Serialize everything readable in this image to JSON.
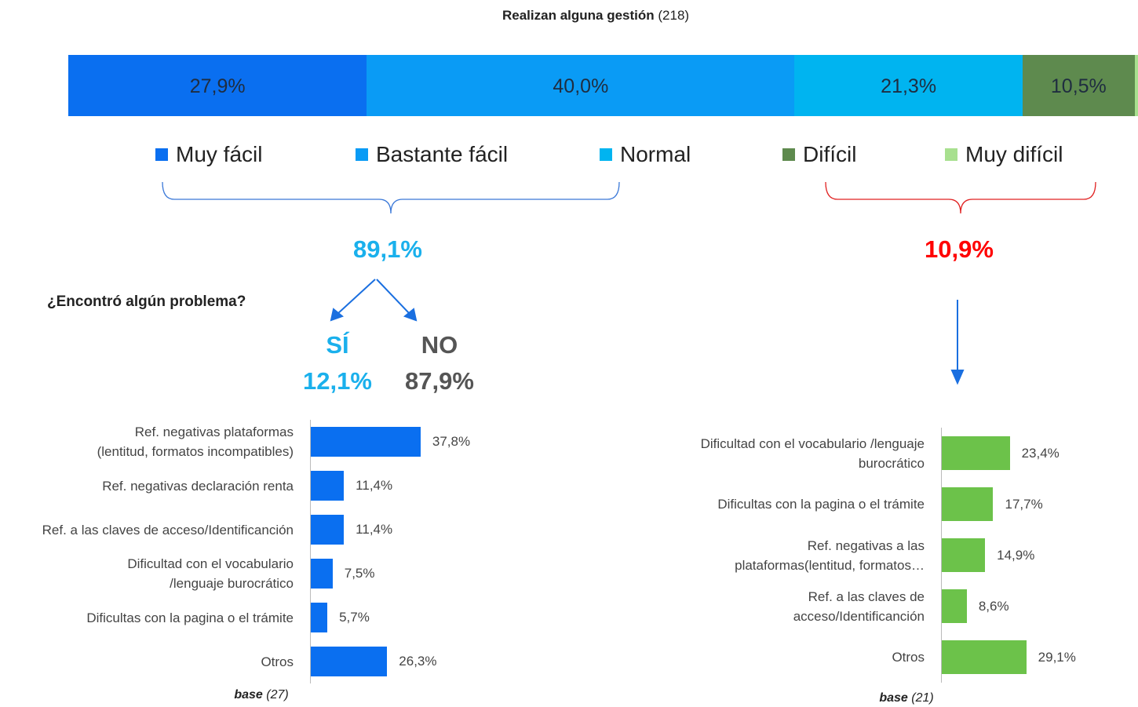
{
  "chart_data": [
    {
      "type": "stacked_bar",
      "title": "Realizan alguna gestión",
      "base": "(218)",
      "xlim": [
        0,
        100
      ],
      "series": [
        {
          "name": "Muy fácil",
          "color": "#0a6ff0",
          "values": [
            27.9
          ],
          "value_labels": [
            "27,9%"
          ]
        },
        {
          "name": "Bastante fácil",
          "color": "#0a9bf5",
          "values": [
            40.0
          ],
          "value_labels": [
            "40,0%"
          ]
        },
        {
          "name": "Normal",
          "color": "#00b4f0",
          "values": [
            21.3
          ],
          "value_labels": [
            "21,3%"
          ]
        },
        {
          "name": "Difícil",
          "color": "#5e8a4e",
          "values": [
            10.5
          ],
          "value_labels": [
            "10,5%"
          ]
        },
        {
          "name": "Muy difícil",
          "color": "#a8e08f",
          "values": [
            0.3
          ],
          "value_labels": [
            null
          ]
        }
      ]
    },
    {
      "type": "hbar",
      "color": "#0a6ff0",
      "xlim": [
        0,
        100
      ],
      "categories": [
        "Ref. negativas plataformas\n(lentitud, formatos incompatibles)",
        "Ref. negativas declaración renta",
        "Ref. a las claves de acceso/Identificanción",
        "Dificultad con el vocabulario\n/lenguaje burocrático",
        "Dificultas con la pagina o el trámite",
        "Otros"
      ],
      "values": [
        37.8,
        11.4,
        11.4,
        7.5,
        5.7,
        26.3
      ],
      "value_labels": [
        "37,8%",
        "11,4%",
        "11,4%",
        "7,5%",
        "5,7%",
        "26,3%"
      ],
      "base_label": "base",
      "base_n": "(27)"
    },
    {
      "type": "hbar",
      "color": "#6cc24a",
      "xlim": [
        0,
        100
      ],
      "categories": [
        "Dificultad con el vocabulario /lenguaje\nburocrático",
        "Dificultas con la pagina o el trámite",
        "Ref. negativas a las\nplataformas(lentitud, formatos…",
        "Ref. a las claves de\nacceso/Identificanción",
        "Otros"
      ],
      "values": [
        23.4,
        17.7,
        14.9,
        8.6,
        29.1
      ],
      "value_labels": [
        "23,4%",
        "17,7%",
        "14,9%",
        "8,6%",
        "29,1%"
      ],
      "base_label": "base",
      "base_n": "(21)"
    }
  ],
  "summary": {
    "easy": "89,1%",
    "hard": "10,9%",
    "question": "¿Encontró algún problema?",
    "yes": "SÍ",
    "yes_value": "12,1%",
    "no": "NO",
    "no_value": "87,9%"
  }
}
